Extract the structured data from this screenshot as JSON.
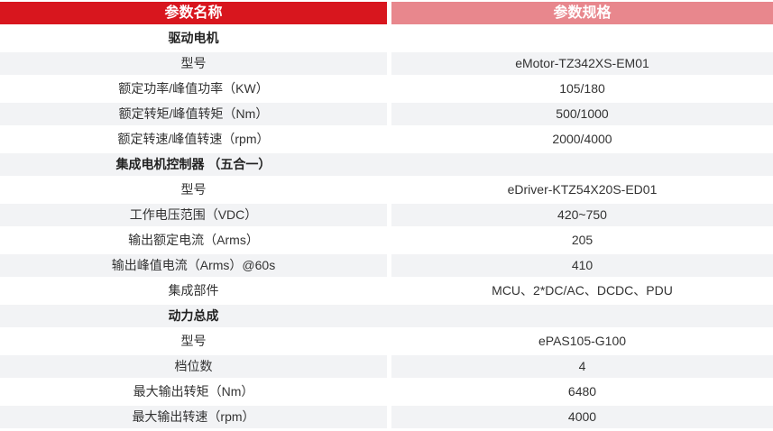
{
  "header": {
    "param_name_label": "参数名称",
    "param_spec_label": "参数规格"
  },
  "colors": {
    "header_left_bg": "#d8161e",
    "header_right_bg": "#e8878d",
    "row_alt_bg": "#f2f3f5",
    "text": "#333333"
  },
  "rows": [
    {
      "type": "section",
      "name": "驱动电机"
    },
    {
      "type": "param",
      "name": "型号",
      "value": "eMotor-TZ342XS-EM01"
    },
    {
      "type": "param",
      "name": "额定功率/峰值功率（KW）",
      "value": "105/180"
    },
    {
      "type": "param",
      "name": "额定转矩/峰值转矩（Nm）",
      "value": "500/1000"
    },
    {
      "type": "param",
      "name": "额定转速/峰值转速（rpm）",
      "value": "2000/4000"
    },
    {
      "type": "section",
      "name": "集成电机控制器 （五合一）"
    },
    {
      "type": "param",
      "name": "型号",
      "value": "eDriver-KTZ54X20S-ED01"
    },
    {
      "type": "param",
      "name": "工作电压范围（VDC）",
      "value": "420~750"
    },
    {
      "type": "param",
      "name": "输出额定电流（Arms）",
      "value": "205"
    },
    {
      "type": "param",
      "name": "输出峰值电流（Arms）@60s",
      "value": "410"
    },
    {
      "type": "param",
      "name": "集成部件",
      "value": "MCU、2*DC/AC、DCDC、PDU"
    },
    {
      "type": "section",
      "name": "动力总成"
    },
    {
      "type": "param",
      "name": "型号",
      "value": "ePAS105-G100"
    },
    {
      "type": "param",
      "name": "档位数",
      "value": "4"
    },
    {
      "type": "param",
      "name": "最大输出转矩（Nm）",
      "value": "6480"
    },
    {
      "type": "param",
      "name": "最大输出转速（rpm）",
      "value": "4000"
    }
  ]
}
